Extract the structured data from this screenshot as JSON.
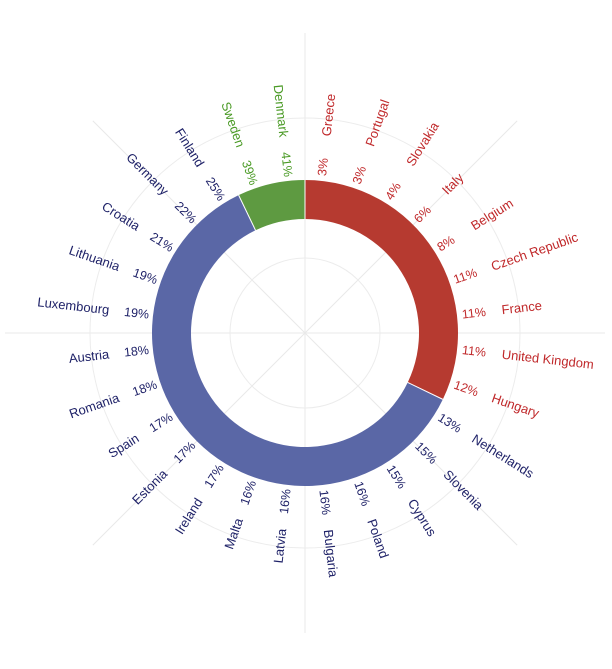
{
  "chart_data": {
    "type": "radial-bar",
    "groups": [
      {
        "color": "#b63a30",
        "countries": [
          "Greece",
          "Portugal",
          "Slovakia",
          "Italy",
          "Belgium",
          "Czech Republic",
          "France",
          "United Kingdom",
          "Hungary"
        ]
      },
      {
        "color": "#5a67a6",
        "countries": [
          "Netherlands",
          "Slovenia",
          "Cyprus",
          "Poland",
          "Bulgaria",
          "Latvia",
          "Malta",
          "Ireland",
          "Estonia",
          "Spain",
          "Romania",
          "Austria",
          "Luxembourg",
          "Lithuania",
          "Croatia",
          "Germany",
          "Finland"
        ]
      },
      {
        "color": "#5e9a41",
        "countries": [
          "Sweden",
          "Denmark"
        ]
      }
    ],
    "label_colors": {
      "red": "#c0282a",
      "blue": "#1f2268",
      "green": "#4a9a25"
    },
    "grid": true,
    "items": [
      {
        "country": "Greece",
        "value": 3,
        "label": "3%"
      },
      {
        "country": "Portugal",
        "value": 3,
        "label": "3%"
      },
      {
        "country": "Slovakia",
        "value": 4,
        "label": "4%"
      },
      {
        "country": "Italy",
        "value": 6,
        "label": "6%"
      },
      {
        "country": "Belgium",
        "value": 8,
        "label": "8%"
      },
      {
        "country": "Czech Republic",
        "value": 11,
        "label": "11%"
      },
      {
        "country": "France",
        "value": 11,
        "label": "11%"
      },
      {
        "country": "United Kingdom",
        "value": 11,
        "label": "11%"
      },
      {
        "country": "Hungary",
        "value": 12,
        "label": "12%"
      },
      {
        "country": "Netherlands",
        "value": 13,
        "label": "13%"
      },
      {
        "country": "Slovenia",
        "value": 15,
        "label": "15%"
      },
      {
        "country": "Cyprus",
        "value": 15,
        "label": "15%"
      },
      {
        "country": "Poland",
        "value": 16,
        "label": "16%"
      },
      {
        "country": "Bulgaria",
        "value": 16,
        "label": "16%"
      },
      {
        "country": "Latvia",
        "value": 16,
        "label": "16%"
      },
      {
        "country": "Malta",
        "value": 16,
        "label": "16%"
      },
      {
        "country": "Ireland",
        "value": 17,
        "label": "17%"
      },
      {
        "country": "Estonia",
        "value": 17,
        "label": "17%"
      },
      {
        "country": "Spain",
        "value": 17,
        "label": "17%"
      },
      {
        "country": "Romania",
        "value": 18,
        "label": "18%"
      },
      {
        "country": "Austria",
        "value": 18,
        "label": "18%"
      },
      {
        "country": "Luxembourg",
        "value": 19,
        "label": "19%"
      },
      {
        "country": "Lithuania",
        "value": 19,
        "label": "19%"
      },
      {
        "country": "Croatia",
        "value": 21,
        "label": "21%"
      },
      {
        "country": "Germany",
        "value": 22,
        "label": "22%"
      },
      {
        "country": "Finland",
        "value": 25,
        "label": "25%"
      },
      {
        "country": "Sweden",
        "value": 39,
        "label": "39%"
      },
      {
        "country": "Denmark",
        "value": 41,
        "label": "41%"
      }
    ]
  }
}
